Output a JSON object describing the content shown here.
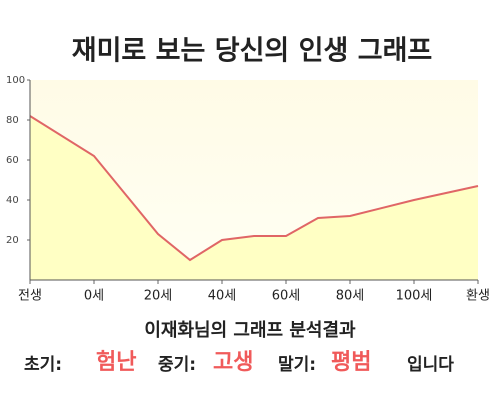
{
  "chart_data": {
    "type": "area",
    "title": "재미로 보는 당신의 인생 그래프",
    "x": [
      -20,
      0,
      20,
      30,
      40,
      50,
      60,
      70,
      80,
      100,
      120
    ],
    "values": [
      82,
      62,
      23,
      10,
      20,
      22,
      22,
      31,
      32,
      40,
      47
    ],
    "color": "#e06666",
    "fill": "#ffffc4",
    "xlim": [
      -20,
      120
    ],
    "xticks": [
      {
        "value": -20,
        "label": "전생"
      },
      {
        "value": 0,
        "label": "0세"
      },
      {
        "value": 20,
        "label": "20세"
      },
      {
        "value": 40,
        "label": "40세"
      },
      {
        "value": 60,
        "label": "60세"
      },
      {
        "value": 80,
        "label": "80세"
      },
      {
        "value": 100,
        "label": "100세"
      },
      {
        "value": 120,
        "label": "환생"
      }
    ],
    "ylim": [
      0,
      100
    ],
    "yticks": [
      20,
      40,
      60,
      80,
      100
    ],
    "result": {
      "heading": "이재화님의 그래프 분석결과",
      "items": [
        {
          "label": "초기:",
          "value": "험난"
        },
        {
          "label": "중기:",
          "value": "고생"
        },
        {
          "label": "말기:",
          "value": "평범"
        }
      ],
      "ending": "입니다"
    }
  }
}
